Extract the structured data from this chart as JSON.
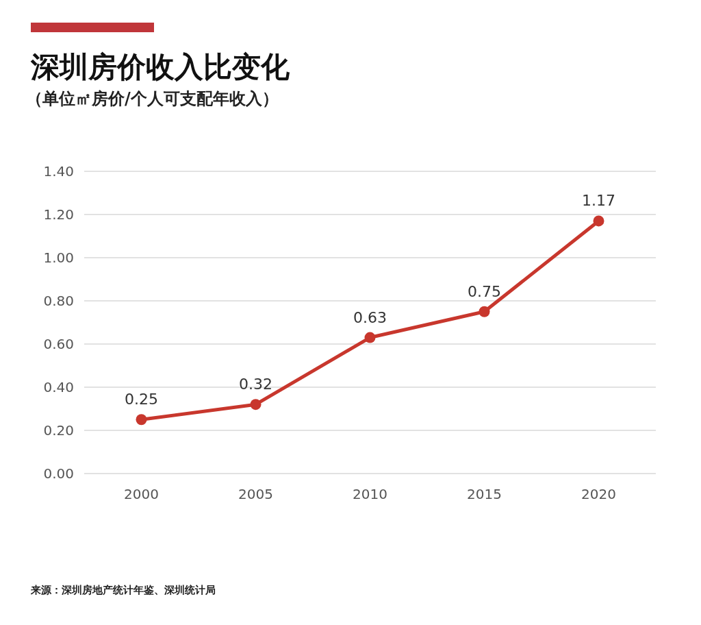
{
  "chart_data": {
    "type": "line",
    "title": "深圳房价收入比变化",
    "subtitle": "（单位㎡房价/个人可支配年收入）",
    "categories": [
      "2000",
      "2005",
      "2010",
      "2015",
      "2020"
    ],
    "series": [
      {
        "color": "#c8372d",
        "values": [
          0.25,
          0.32,
          0.63,
          0.75,
          1.17
        ]
      }
    ],
    "ylim": [
      0,
      1.4
    ],
    "yticks": [
      {
        "value": 0,
        "label": "0.00"
      },
      {
        "value": 0.2,
        "label": "0.20"
      },
      {
        "value": 0.4,
        "label": "0.40"
      },
      {
        "value": 0.6,
        "label": "0.60"
      },
      {
        "value": 0.8,
        "label": "0.80"
      },
      {
        "value": 1.0,
        "label": "1.00"
      },
      {
        "value": 1.2,
        "label": "1.20"
      },
      {
        "value": 1.4,
        "label": "1.40"
      }
    ],
    "grid": "y",
    "marker": "circle",
    "line_style": "solid",
    "data_labels": true,
    "annotations": [
      "来源：深圳房地产统计年鉴、深圳统计局"
    ]
  }
}
